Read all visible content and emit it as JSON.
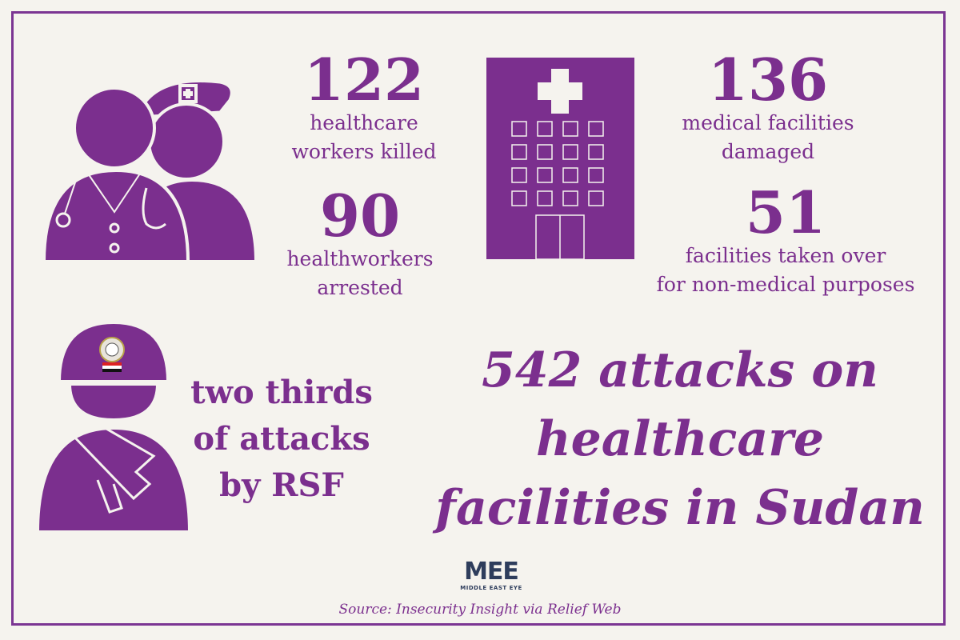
{
  "stats": {
    "killed": {
      "number": "122",
      "label_line1": "healthcare",
      "label_line2": "workers killed"
    },
    "arrested": {
      "number": "90",
      "label_line1": "healthworkers",
      "label_line2": "arrested"
    },
    "damaged": {
      "number": "136",
      "label_line1": "medical facilities",
      "label_line2": "damaged"
    },
    "taken_over": {
      "number": "51",
      "label_line1": "facilities taken over",
      "label_line2": "for non-medical purposes"
    }
  },
  "rsf": {
    "line1": "two thirds",
    "line2": "of attacks",
    "line3": "by RSF"
  },
  "headline": {
    "line1": "542 attacks on",
    "line2": "healthcare",
    "line3": "facilities in Sudan"
  },
  "logo": {
    "mark": "MEE",
    "name": "MIDDLE EAST EYE"
  },
  "source": "Source: Insecurity Insight via Relief Web",
  "colors": {
    "accent": "#7b2f8e",
    "background": "#f5f3ee",
    "logo": "#2e3d5c"
  },
  "icons": [
    "healthcare-workers-icon",
    "hospital-building-icon",
    "soldier-icon"
  ]
}
